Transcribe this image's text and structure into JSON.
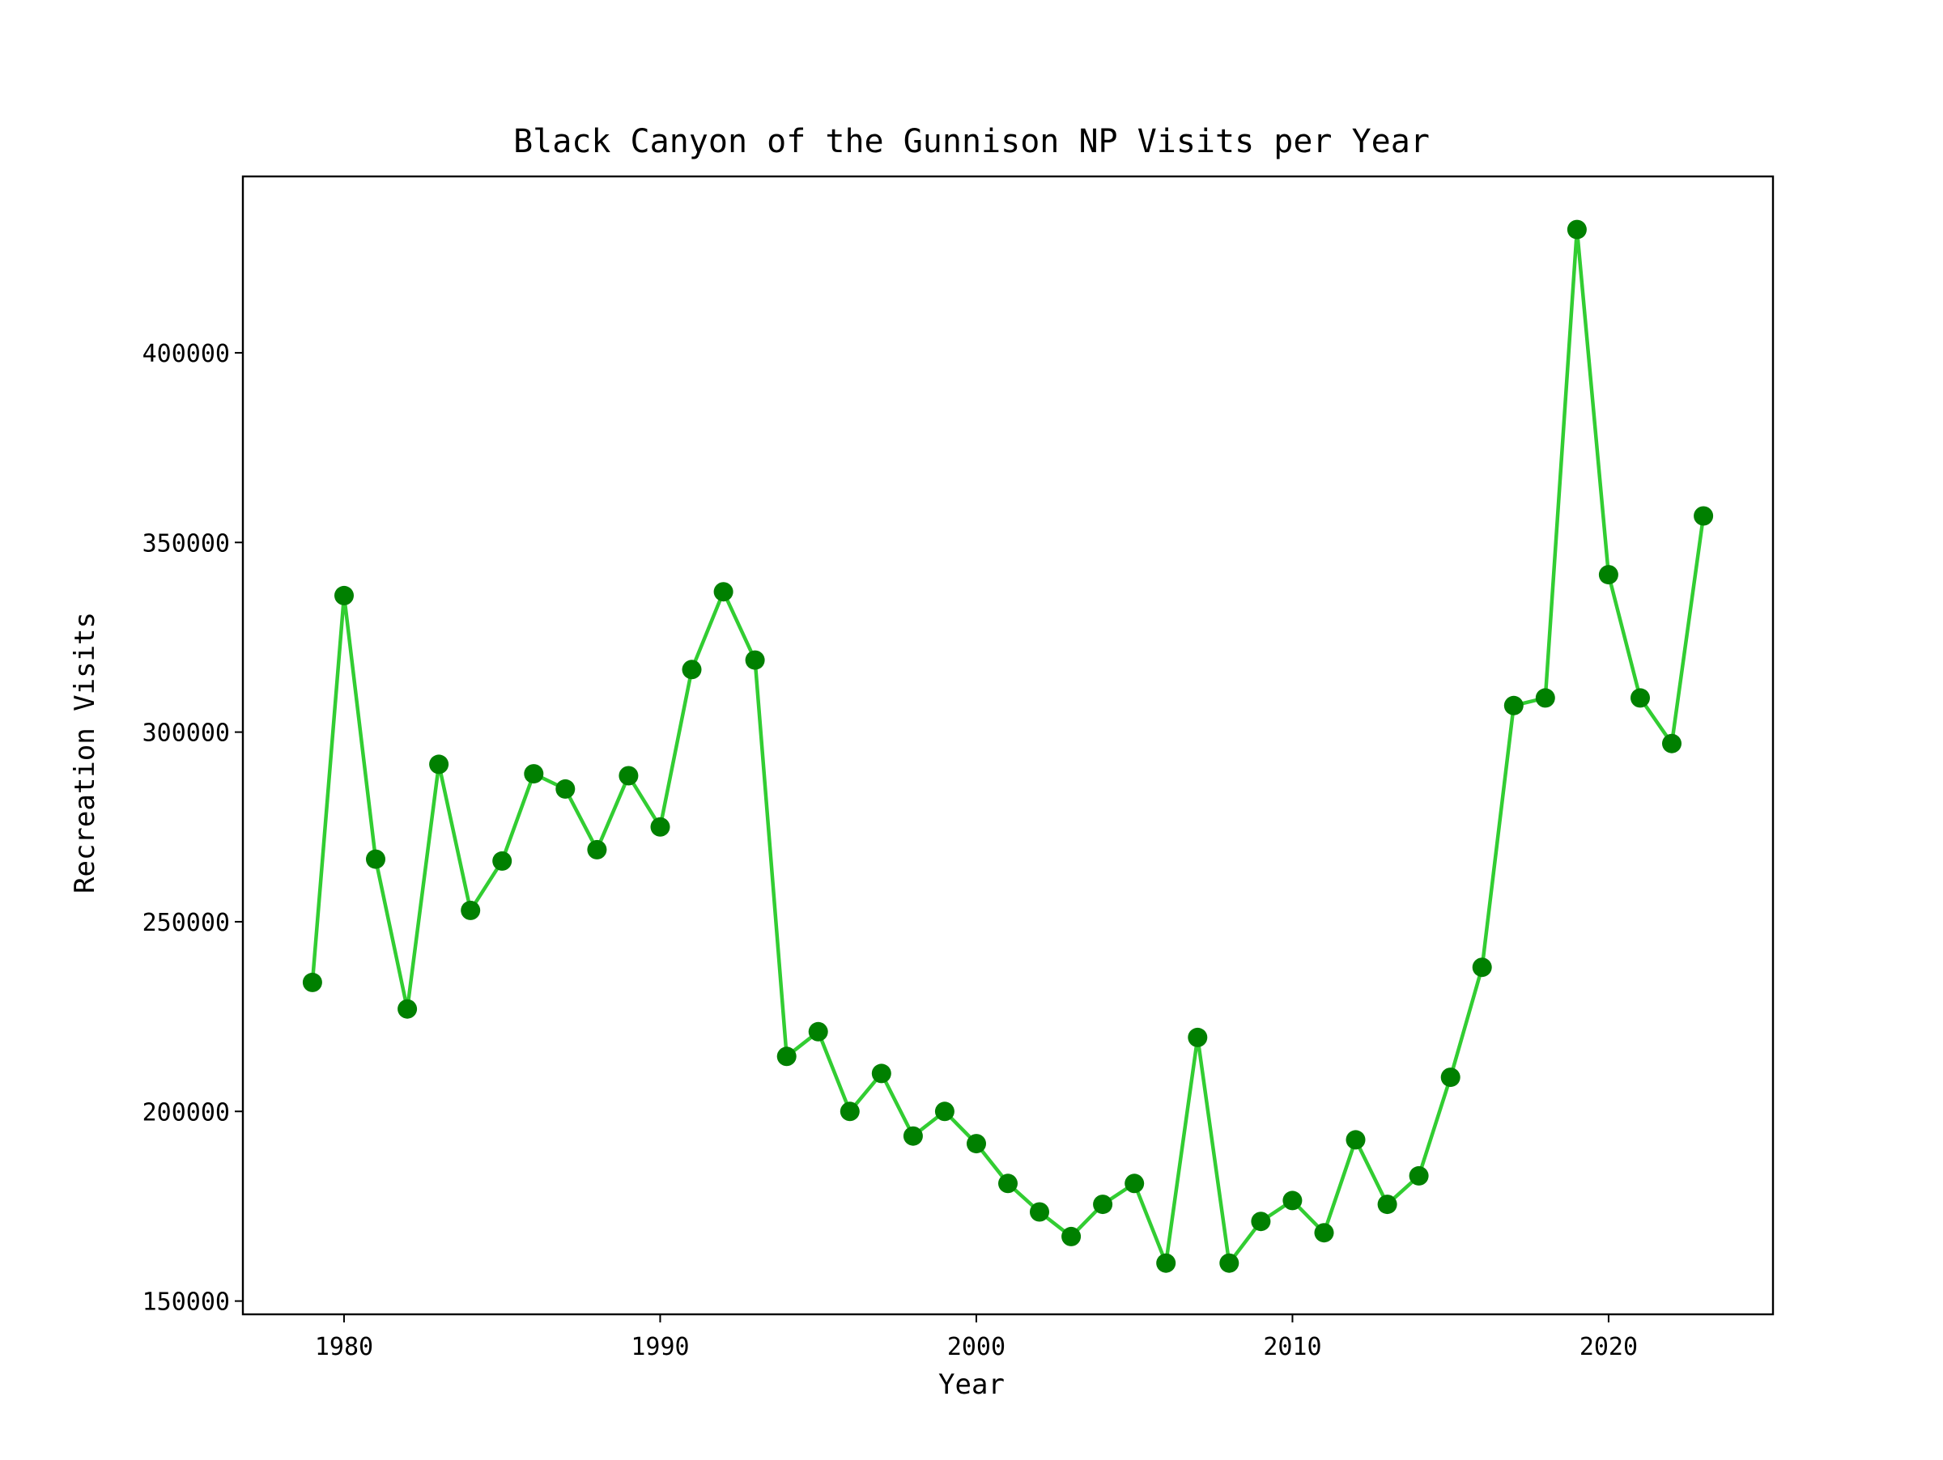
{
  "chart_data": {
    "type": "line",
    "title": "Black Canyon of the Gunnison NP Visits per Year",
    "xlabel": "Year",
    "ylabel": "Recreation Visits",
    "xlim": [
      1976.8,
      2025.2
    ],
    "ylim": [
      146500,
      446500
    ],
    "xticks": [
      1980,
      1990,
      2000,
      2010,
      2020
    ],
    "yticks": [
      150000,
      200000,
      250000,
      300000,
      350000,
      400000
    ],
    "grid": false,
    "legend": "none",
    "line_color": "#32cd32",
    "marker_color": "#008000",
    "series": [
      {
        "x": [
          1979,
          1980,
          1981,
          1982,
          1983,
          1984,
          1985,
          1986,
          1987,
          1988,
          1989,
          1990,
          1991,
          1992,
          1993,
          1994,
          1995,
          1996,
          1997,
          1998,
          1999,
          2000,
          2001,
          2002,
          2003,
          2004,
          2005,
          2006,
          2007,
          2008,
          2009,
          2010,
          2011,
          2012,
          2013,
          2014,
          2015,
          2016,
          2017,
          2018,
          2019,
          2020,
          2021,
          2022,
          2023
        ],
        "values": [
          234000,
          336000,
          266500,
          227000,
          291500,
          253000,
          266000,
          289000,
          285000,
          269000,
          288500,
          275000,
          316500,
          337000,
          319000,
          214500,
          221000,
          200000,
          210000,
          193500,
          200000,
          191500,
          181000,
          173500,
          167000,
          175500,
          181000,
          160000,
          219500,
          160000,
          171000,
          176500,
          168000,
          192500,
          175500,
          183000,
          209000,
          238000,
          307000,
          309000,
          432500,
          341500,
          309000,
          297000,
          357000
        ]
      }
    ]
  }
}
